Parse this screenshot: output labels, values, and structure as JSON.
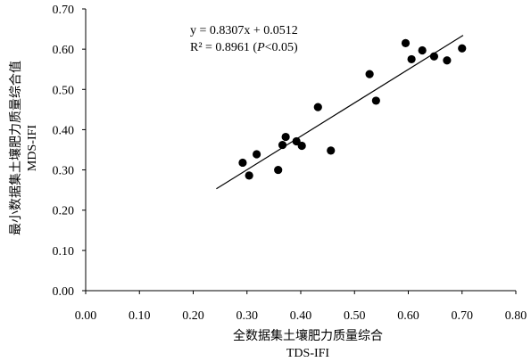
{
  "chart_data": {
    "type": "scatter",
    "xlabel_line1": "全数据集土壤肥力质量综合",
    "xlabel_line2": "TDS-IFI",
    "ylabel_line1": "最小数据集土壤肥力质量综合值",
    "ylabel_line2": "MDS-IFI",
    "xlim": [
      0,
      0.8
    ],
    "ylim": [
      0,
      0.7
    ],
    "x_ticks": [
      "0.00",
      "0.10",
      "0.20",
      "0.30",
      "0.40",
      "0.50",
      "0.60",
      "0.70",
      "0.80"
    ],
    "y_ticks": [
      "0.00",
      "0.10",
      "0.20",
      "0.30",
      "0.40",
      "0.50",
      "0.60",
      "0.70"
    ],
    "points": [
      {
        "x": 0.292,
        "y": 0.318
      },
      {
        "x": 0.304,
        "y": 0.286
      },
      {
        "x": 0.318,
        "y": 0.339
      },
      {
        "x": 0.358,
        "y": 0.3
      },
      {
        "x": 0.366,
        "y": 0.362
      },
      {
        "x": 0.372,
        "y": 0.382
      },
      {
        "x": 0.392,
        "y": 0.371
      },
      {
        "x": 0.402,
        "y": 0.36
      },
      {
        "x": 0.432,
        "y": 0.456
      },
      {
        "x": 0.456,
        "y": 0.348
      },
      {
        "x": 0.528,
        "y": 0.538
      },
      {
        "x": 0.54,
        "y": 0.472
      },
      {
        "x": 0.595,
        "y": 0.615
      },
      {
        "x": 0.606,
        "y": 0.575
      },
      {
        "x": 0.626,
        "y": 0.597
      },
      {
        "x": 0.648,
        "y": 0.582
      },
      {
        "x": 0.672,
        "y": 0.572
      },
      {
        "x": 0.7,
        "y": 0.602
      }
    ],
    "trendline": {
      "slope": 0.8307,
      "intercept": 0.0512,
      "x_start": 0.243,
      "x_end": 0.702
    },
    "equation_text": "y = 0.8307x + 0.0512",
    "r2_prefix": "R² = 0.8961 (",
    "r2_p": "P",
    "r2_suffix": "<0.05)",
    "grid": false,
    "legend": "none"
  }
}
